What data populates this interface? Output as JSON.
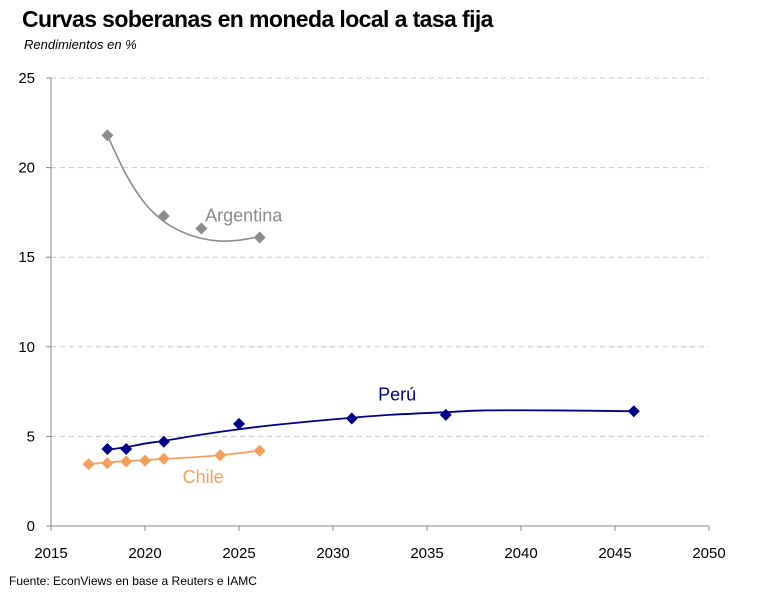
{
  "chart_data": {
    "type": "scatter",
    "title": "Curvas soberanas en moneda local a tasa fija",
    "subtitle": "Rendimientos en %",
    "source": "Fuente: EconViews  en base a Reuters e IAMC",
    "xlim": [
      2015,
      2050
    ],
    "ylim": [
      0,
      25
    ],
    "xticks": [
      "2015",
      "2020",
      "2025",
      "2030",
      "2035",
      "2040",
      "2045",
      "2050"
    ],
    "yticks": [
      "0",
      "5",
      "10",
      "15",
      "20",
      "25"
    ],
    "grid": "horizontal dashed",
    "series": [
      {
        "name": "Argentina",
        "color": "#8c8c8c",
        "x": [
          2018,
          2021,
          2023,
          2026.1
        ],
        "y": [
          21.8,
          17.3,
          16.6,
          16.1
        ],
        "trend": [
          [
            2018,
            21.8
          ],
          [
            2019,
            19.6
          ],
          [
            2020,
            18.0
          ],
          [
            2021,
            17.0
          ],
          [
            2022,
            16.4
          ],
          [
            2023,
            16.05
          ],
          [
            2024,
            15.9
          ],
          [
            2025,
            15.95
          ],
          [
            2026.1,
            16.15
          ]
        ]
      },
      {
        "name": "Perú",
        "color": "#00008b",
        "x": [
          2018,
          2019,
          2021,
          2025,
          2031,
          2036,
          2046
        ],
        "y": [
          4.3,
          4.3,
          4.7,
          5.7,
          6.0,
          6.2,
          6.4
        ],
        "trend": [
          [
            2018,
            4.25
          ],
          [
            2019,
            4.4
          ],
          [
            2020,
            4.6
          ],
          [
            2021,
            4.75
          ],
          [
            2023,
            5.1
          ],
          [
            2025,
            5.4
          ],
          [
            2027,
            5.65
          ],
          [
            2030,
            5.95
          ],
          [
            2033,
            6.2
          ],
          [
            2036,
            6.35
          ],
          [
            2038,
            6.45
          ],
          [
            2042,
            6.45
          ],
          [
            2046,
            6.4
          ]
        ]
      },
      {
        "name": "Chile",
        "color": "#f5a05a",
        "x": [
          2017,
          2018,
          2019,
          2020,
          2021,
          2024,
          2026.1
        ],
        "y": [
          3.45,
          3.5,
          3.6,
          3.65,
          3.75,
          3.95,
          4.2
        ],
        "trend": [
          [
            2017,
            3.45
          ],
          [
            2018,
            3.55
          ],
          [
            2019,
            3.62
          ],
          [
            2020,
            3.68
          ],
          [
            2021,
            3.75
          ],
          [
            2022,
            3.8
          ],
          [
            2024,
            3.95
          ],
          [
            2026.1,
            4.2
          ]
        ]
      }
    ]
  }
}
